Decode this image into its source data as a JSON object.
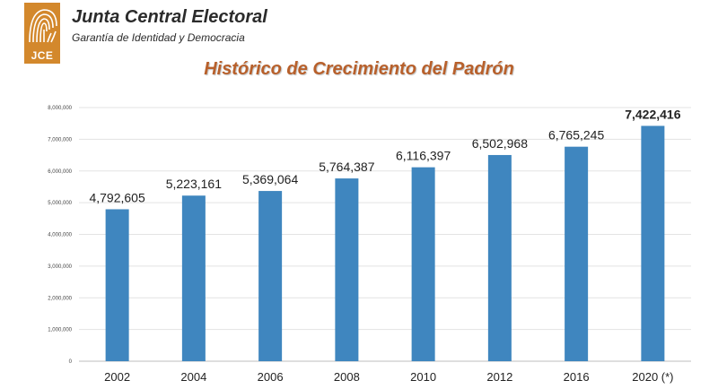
{
  "header": {
    "org_name": "Junta Central Electoral",
    "tagline": "Garantía de Identidad y Democracia",
    "logo_text": "JCE",
    "logo_color": "#d3882c"
  },
  "chart_data": {
    "type": "bar",
    "title": "Histórico de Crecimiento del Padrón",
    "categories": [
      "2002",
      "2004",
      "2006",
      "2008",
      "2010",
      "2012",
      "2016",
      "2020 (*)"
    ],
    "values": [
      4792605,
      5223161,
      5369064,
      5764387,
      6116397,
      6502968,
      6765245,
      7422416
    ],
    "value_labels": [
      "4,792,605",
      "5,223,161",
      "5,369,064",
      "5,764,387",
      "6,116,397",
      "6,502,968",
      "6,765,245",
      "7,422,416"
    ],
    "highlight_index": 7,
    "yticks": [
      0,
      1000000,
      2000000,
      3000000,
      4000000,
      5000000,
      6000000,
      7000000,
      8000000
    ],
    "ytick_labels": [
      "0",
      "1,000,000",
      "2,000,000",
      "3,000,000",
      "4,000,000",
      "5,000,000",
      "6,000,000",
      "7,000,000",
      "8,000,000"
    ],
    "ylim": [
      0,
      8000000
    ],
    "grid": true,
    "bar_color": "#3f86bf",
    "xlabel": "",
    "ylabel": ""
  }
}
